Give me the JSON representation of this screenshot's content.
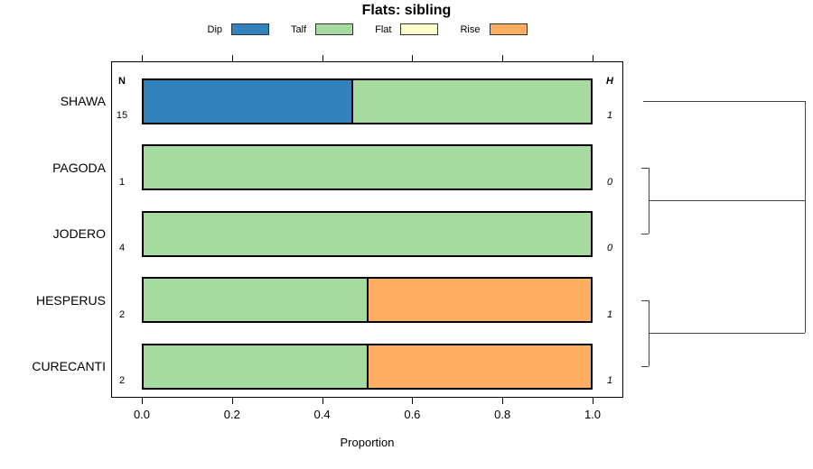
{
  "chart_data": {
    "type": "bar",
    "orientation": "horizontal",
    "stacked": true,
    "title": "Flats: sibling",
    "xlabel": "Proportion",
    "xlim": [
      0,
      1
    ],
    "x_ticks": [
      "0.0",
      "0.2",
      "0.4",
      "0.6",
      "0.8",
      "1.0"
    ],
    "grid": false,
    "legend_position": "top",
    "legend": [
      {
        "label": "Dip",
        "color": "#3182bd"
      },
      {
        "label": "Talf",
        "color": "#a6dba0"
      },
      {
        "label": "Flat",
        "color": "#ffffcc"
      },
      {
        "label": "Rise",
        "color": "#fdae61"
      }
    ],
    "categories": [
      "SHAWA",
      "PAGODA",
      "JODERO",
      "HESPERUS",
      "CURECANTI"
    ],
    "series": [
      {
        "name": "Dip",
        "values": [
          0.4667,
          0,
          0,
          0,
          0
        ]
      },
      {
        "name": "Talf",
        "values": [
          0.5333,
          1,
          1,
          0.5,
          0.5
        ]
      },
      {
        "name": "Flat",
        "values": [
          0,
          0,
          0,
          0,
          0
        ]
      },
      {
        "name": "Rise",
        "values": [
          0,
          0,
          0,
          0.5,
          0.5
        ]
      }
    ],
    "left_column_header": "N",
    "left_column_values": [
      "15",
      "1",
      "4",
      "2",
      "2"
    ],
    "right_column_header": "H",
    "right_column_values": [
      "1",
      "0",
      "0",
      "1",
      "1"
    ],
    "dendrogram_groups": [
      [
        "SHAWA"
      ],
      [
        "PAGODA",
        "JODERO"
      ],
      [
        "HESPERUS",
        "CURECANTI"
      ]
    ]
  }
}
